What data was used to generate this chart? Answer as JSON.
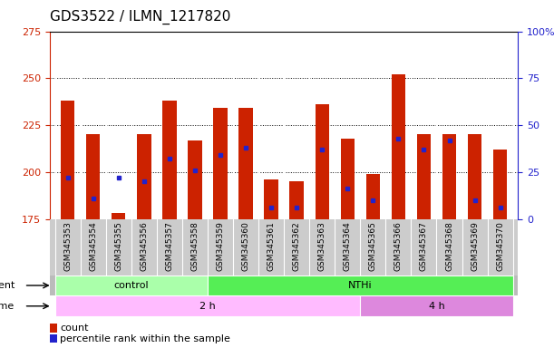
{
  "title": "GDS3522 / ILMN_1217820",
  "samples": [
    "GSM345353",
    "GSM345354",
    "GSM345355",
    "GSM345356",
    "GSM345357",
    "GSM345358",
    "GSM345359",
    "GSM345360",
    "GSM345361",
    "GSM345362",
    "GSM345363",
    "GSM345364",
    "GSM345365",
    "GSM345366",
    "GSM345367",
    "GSM345368",
    "GSM345369",
    "GSM345370"
  ],
  "bar_tops": [
    238,
    220,
    178,
    220,
    238,
    217,
    234,
    234,
    196,
    195,
    236,
    218,
    199,
    252,
    220,
    220,
    220,
    212
  ],
  "blue_dots": [
    197,
    186,
    197,
    195,
    207,
    201,
    209,
    213,
    181,
    181,
    212,
    191,
    185,
    218,
    212,
    217,
    185,
    181
  ],
  "bar_bottom": 175,
  "ymin": 175,
  "ymax": 275,
  "yticks": [
    175,
    200,
    225,
    250,
    275
  ],
  "y2min": 0,
  "y2max": 100,
  "y2ticks": [
    0,
    25,
    50,
    75,
    100
  ],
  "grid_lines": [
    200,
    225,
    250
  ],
  "bar_color": "#cc2200",
  "dot_color": "#2222cc",
  "agent_groups": [
    {
      "label": "control",
      "start": 0,
      "end": 6,
      "color": "#aaffaa"
    },
    {
      "label": "NTHi",
      "start": 6,
      "end": 18,
      "color": "#55ee55"
    }
  ],
  "time_groups": [
    {
      "label": "2 h",
      "start": 0,
      "end": 12,
      "color": "#ffbbff"
    },
    {
      "label": "4 h",
      "start": 12,
      "end": 18,
      "color": "#dd88dd"
    }
  ],
  "agent_label": "agent",
  "time_label": "time",
  "legend_count": "count",
  "legend_percentile": "percentile rank within the sample",
  "title_fontsize": 11,
  "axis_color_left": "#cc2200",
  "axis_color_right": "#2222cc",
  "bg_color": "#ffffff",
  "xband_bg": "#cccccc",
  "agent_bg": "#bbbbbb"
}
